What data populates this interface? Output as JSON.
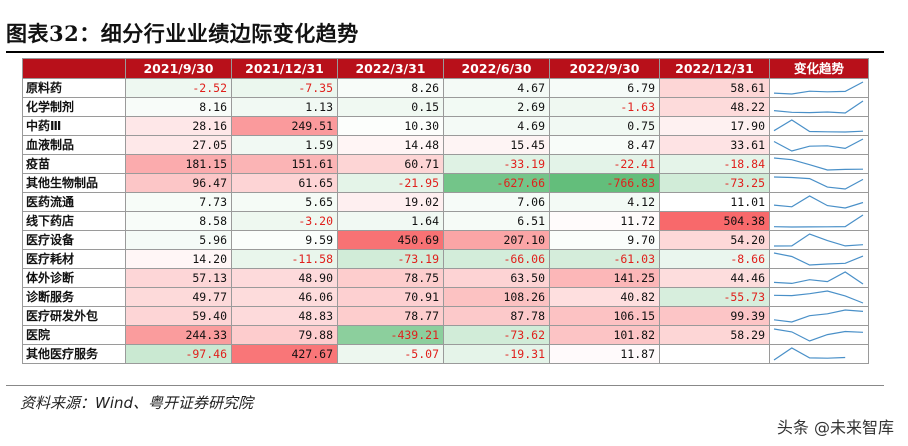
{
  "title": "图表32：细分行业业绩边际变化趋势",
  "source": "资料来源：Wind、粤开证券研究院",
  "watermark": "头条 @未来智库",
  "table": {
    "headers": [
      "",
      "2021/9/30",
      "2021/12/31",
      "2022/3/31",
      "2022/6/30",
      "2022/9/30",
      "2022/12/31",
      "变化趋势"
    ],
    "rows": [
      {
        "name": "原料药",
        "values": [
          -2.52,
          -7.35,
          8.26,
          4.67,
          6.79,
          58.61
        ],
        "text": [
          "-2.52",
          "-7.35",
          "8.26",
          "4.67",
          "6.79",
          "58.61"
        ]
      },
      {
        "name": "化学制剂",
        "values": [
          8.16,
          1.13,
          0.15,
          2.69,
          -1.63,
          48.22
        ],
        "text": [
          "8.16",
          "1.13",
          "0.15",
          "2.69",
          "-1.63",
          "48.22"
        ]
      },
      {
        "name": "中药Ⅲ",
        "values": [
          28.16,
          249.51,
          10.3,
          4.69,
          0.75,
          17.9
        ],
        "text": [
          "28.16",
          "249.51",
          "10.30",
          "4.69",
          "0.75",
          "17.90"
        ]
      },
      {
        "name": "血液制品",
        "values": [
          27.05,
          1.59,
          14.48,
          15.45,
          8.47,
          33.61
        ],
        "text": [
          "27.05",
          "1.59",
          "14.48",
          "15.45",
          "8.47",
          "33.61"
        ]
      },
      {
        "name": "疫苗",
        "values": [
          181.15,
          151.61,
          60.71,
          -33.19,
          -22.41,
          -18.84
        ],
        "text": [
          "181.15",
          "151.61",
          "60.71",
          "-33.19",
          "-22.41",
          "-18.84"
        ]
      },
      {
        "name": "其他生物制品",
        "values": [
          96.47,
          61.65,
          -21.95,
          -627.66,
          -766.83,
          -73.25
        ],
        "text": [
          "96.47",
          "61.65",
          "-21.95",
          "-627.66",
          "-766.83",
          "-73.25"
        ]
      },
      {
        "name": "医药流通",
        "values": [
          7.73,
          5.65,
          19.02,
          7.06,
          4.12,
          11.01
        ],
        "text": [
          "7.73",
          "5.65",
          "19.02",
          "7.06",
          "4.12",
          "11.01"
        ]
      },
      {
        "name": "线下药店",
        "values": [
          8.58,
          -3.2,
          1.64,
          6.51,
          11.72,
          504.38
        ],
        "text": [
          "8.58",
          "-3.20",
          "1.64",
          "6.51",
          "11.72",
          "504.38"
        ]
      },
      {
        "name": "医疗设备",
        "values": [
          5.96,
          9.59,
          450.69,
          207.1,
          9.7,
          54.2
        ],
        "text": [
          "5.96",
          "9.59",
          "450.69",
          "207.10",
          "9.70",
          "54.20"
        ]
      },
      {
        "name": "医疗耗材",
        "values": [
          14.2,
          -11.58,
          -73.19,
          -66.06,
          -61.03,
          -8.66
        ],
        "text": [
          "14.20",
          "-11.58",
          "-73.19",
          "-66.06",
          "-61.03",
          "-8.66"
        ]
      },
      {
        "name": "体外诊断",
        "values": [
          57.13,
          48.9,
          78.75,
          63.5,
          141.25,
          44.46
        ],
        "text": [
          "57.13",
          "48.90",
          "78.75",
          "63.50",
          "141.25",
          "44.46"
        ]
      },
      {
        "name": "诊断服务",
        "values": [
          49.77,
          46.06,
          70.91,
          108.26,
          40.82,
          -55.73
        ],
        "text": [
          "49.77",
          "46.06",
          "70.91",
          "108.26",
          "40.82",
          "-55.73"
        ]
      },
      {
        "name": "医疗研发外包",
        "values": [
          59.4,
          48.83,
          78.77,
          87.78,
          106.15,
          99.39
        ],
        "text": [
          "59.40",
          "48.83",
          "78.77",
          "87.78",
          "106.15",
          "99.39"
        ]
      },
      {
        "name": "医院",
        "values": [
          244.33,
          79.88,
          -439.21,
          -73.62,
          101.82,
          58.29
        ],
        "text": [
          "244.33",
          "79.88",
          "-439.21",
          "-73.62",
          "101.82",
          "58.29"
        ]
      },
      {
        "name": "其他医疗服务",
        "values": [
          -97.46,
          427.67,
          -5.07,
          -19.31,
          11.87,
          null
        ],
        "text": [
          "-97.46",
          "427.67",
          "-5.07",
          "-19.31",
          "11.87",
          ""
        ]
      }
    ]
  },
  "colors": {
    "header_bg": "#b8101a",
    "header_text": "#ffffff",
    "negative_text": "#e0201c",
    "scale_high": "#f8696b",
    "scale_mid": "#ffffff",
    "scale_low": "#63be7b",
    "sparkline": "#4a90c8"
  }
}
